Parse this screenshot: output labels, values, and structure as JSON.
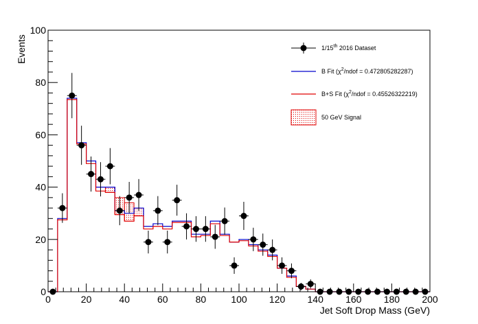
{
  "chart_data": {
    "type": "histogram",
    "xlabel": "Jet Soft Drop Mass (GeV)",
    "ylabel": "Events",
    "xlim": [
      0,
      200
    ],
    "ylim": [
      0,
      100
    ],
    "xticks": [
      0,
      20,
      40,
      60,
      80,
      100,
      120,
      140,
      160,
      180,
      200
    ],
    "yticks": [
      0,
      20,
      40,
      60,
      80,
      100
    ],
    "bin_width": 5,
    "bin_edges": [
      0,
      5,
      10,
      15,
      20,
      25,
      30,
      35,
      40,
      45,
      50,
      55,
      60,
      65,
      70,
      75,
      80,
      85,
      90,
      95,
      100,
      105,
      110,
      115,
      120,
      125,
      130,
      135,
      140,
      145,
      150,
      155,
      160,
      165,
      170,
      175,
      180,
      185,
      190,
      195,
      200
    ],
    "legend": {
      "position": "top-right",
      "entries": [
        {
          "key": "data",
          "pre": "1/15",
          "sup": "th",
          "post": " 2016 Dataset"
        },
        {
          "key": "bfit",
          "pre": "B Fit (",
          "sym": "χ",
          "sup": "2",
          "post": "/ndof = 0.472805282287)"
        },
        {
          "key": "bsfit",
          "pre": "B+S Fit (",
          "sym": "χ",
          "sup": "2",
          "post": "/ndof = 0.45526322219)"
        },
        {
          "key": "signal",
          "pre": "50 GeV Signal",
          "sup": "",
          "post": ""
        }
      ]
    },
    "series": [
      {
        "key": "data",
        "style": "points",
        "color": "#000000",
        "values": [
          0,
          32,
          75,
          56,
          45,
          43,
          48,
          31,
          36,
          37,
          19,
          31,
          19,
          35,
          25,
          24,
          24,
          21,
          27,
          10,
          29,
          20,
          18,
          16,
          10,
          8,
          2,
          3,
          0,
          0,
          0,
          0,
          0,
          0,
          0,
          0,
          0,
          0,
          0,
          0
        ]
      },
      {
        "key": "bfit",
        "style": "step",
        "color": "#0000cc",
        "values": [
          0,
          28,
          74,
          57,
          50,
          40,
          40,
          31,
          30,
          32,
          25,
          26,
          25,
          27,
          27,
          22,
          22,
          27,
          22,
          19,
          20,
          18,
          16,
          14,
          9,
          6,
          2,
          1,
          0,
          0,
          0,
          0,
          0,
          0,
          0,
          0,
          0,
          0,
          0,
          0
        ]
      },
      {
        "key": "bsfit",
        "style": "step",
        "color": "#e00000",
        "values": [
          0,
          27.5,
          73.5,
          56.5,
          49,
          38.5,
          38,
          29.5,
          27,
          29,
          24,
          25,
          24,
          26.5,
          26.5,
          21,
          21.5,
          26,
          21.5,
          19,
          19.5,
          17.5,
          15.5,
          13.5,
          9,
          5.5,
          2,
          1,
          0,
          0,
          0,
          0,
          0,
          0,
          0,
          0,
          0,
          0,
          0,
          0
        ]
      },
      {
        "key": "signal",
        "style": "hatched-band",
        "color": "#e00000",
        "low": [
          null,
          null,
          null,
          null,
          null,
          null,
          38,
          29.5,
          27,
          29
        ],
        "high": [
          null,
          null,
          null,
          null,
          null,
          null,
          40,
          36,
          34,
          32
        ]
      }
    ]
  }
}
